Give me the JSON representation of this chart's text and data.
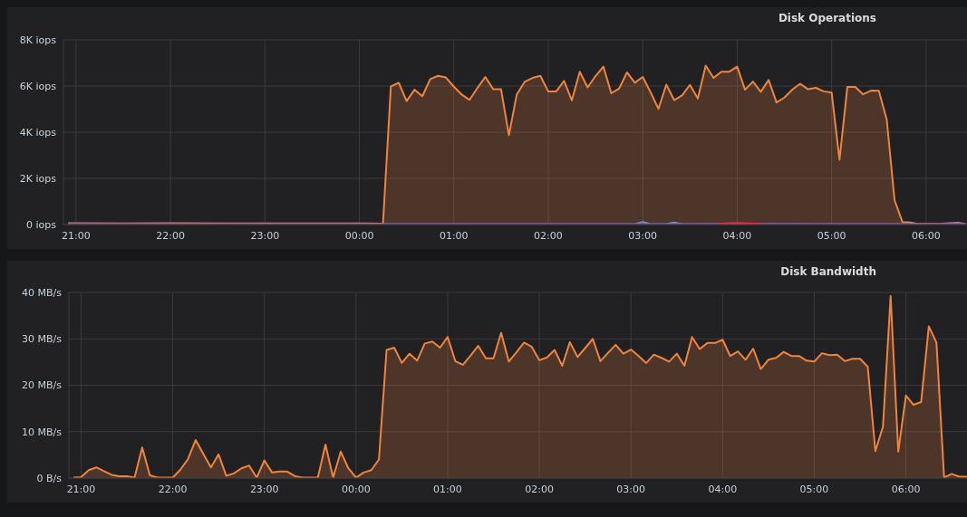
{
  "chart_data": [
    {
      "type": "area",
      "title": "Disk Operations",
      "xlim": [
        "--01-01T20:52",
        "--01-02T06:26"
      ],
      "xticks": [
        {
          "value": "--01-01T21:00",
          "label": "21:00"
        },
        {
          "value": "--01-01T22:00",
          "label": "22:00"
        },
        {
          "value": "--01-01T23:00",
          "label": "23:00"
        },
        {
          "value": "--01-02T00:00",
          "label": "00:00"
        },
        {
          "value": "--01-02T01:00",
          "label": "01:00"
        },
        {
          "value": "--01-02T02:00",
          "label": "02:00"
        },
        {
          "value": "--01-02T03:00",
          "label": "03:00"
        },
        {
          "value": "--01-02T04:00",
          "label": "04:00"
        },
        {
          "value": "--01-02T05:00",
          "label": "05:00"
        },
        {
          "value": "--01-02T06:00",
          "label": "06:00"
        }
      ],
      "ylim": [
        0,
        8000
      ],
      "yticks": [
        {
          "value": 0,
          "label": "0 iops"
        },
        {
          "value": 2000,
          "label": "2K iops"
        },
        {
          "value": 4000,
          "label": "4K iops"
        },
        {
          "value": 6000,
          "label": "6K iops"
        },
        {
          "value": 8000,
          "label": "8K iops"
        }
      ],
      "grid": true,
      "series": [
        {
          "color": "#ef843c",
          "x": [
            "--01-01T20:55",
            "--01-01T21:30",
            "--01-01T22:00",
            "--01-01T22:30",
            "--01-01T23:00",
            "--01-01T23:30",
            "--01-02T00:00",
            "--01-02T00:15",
            "--01-02T00:20",
            "--01-02T00:25",
            "--01-02T00:30",
            "--01-02T00:35",
            "--01-02T00:40",
            "--01-02T00:45",
            "--01-02T00:50",
            "--01-02T00:55",
            "--01-02T01:00",
            "--01-02T01:05",
            "--01-02T01:10",
            "--01-02T01:15",
            "--01-02T01:20",
            "--01-02T01:25",
            "--01-02T01:30",
            "--01-02T01:35",
            "--01-02T01:40",
            "--01-02T01:45",
            "--01-02T01:50",
            "--01-02T01:55",
            "--01-02T02:00",
            "--01-02T02:05",
            "--01-02T02:10",
            "--01-02T02:15",
            "--01-02T02:20",
            "--01-02T02:25",
            "--01-02T02:30",
            "--01-02T02:35",
            "--01-02T02:40",
            "--01-02T02:45",
            "--01-02T02:50",
            "--01-02T02:55",
            "--01-02T03:00",
            "--01-02T03:05",
            "--01-02T03:10",
            "--01-02T03:15",
            "--01-02T03:20",
            "--01-02T03:25",
            "--01-02T03:30",
            "--01-02T03:35",
            "--01-02T03:40",
            "--01-02T03:45",
            "--01-02T03:50",
            "--01-02T03:55",
            "--01-02T04:00",
            "--01-02T04:05",
            "--01-02T04:10",
            "--01-02T04:15",
            "--01-02T04:20",
            "--01-02T04:25",
            "--01-02T04:30",
            "--01-02T04:35",
            "--01-02T04:40",
            "--01-02T04:45",
            "--01-02T04:50",
            "--01-02T04:55",
            "--01-02T05:00",
            "--01-02T05:05",
            "--01-02T05:10",
            "--01-02T05:15",
            "--01-02T05:20",
            "--01-02T05:25",
            "--01-02T05:30",
            "--01-02T05:35",
            "--01-02T05:40",
            "--01-02T05:45",
            "--01-02T05:50",
            "--01-02T05:55",
            "--01-02T06:00",
            "--01-02T06:10",
            "--01-02T06:20",
            "--01-02T06:25"
          ],
          "values": [
            60,
            50,
            60,
            50,
            50,
            50,
            50,
            40,
            5980,
            6140,
            5350,
            5840,
            5560,
            6300,
            6440,
            6370,
            5970,
            5630,
            5400,
            5920,
            6390,
            5860,
            5860,
            3870,
            5640,
            6180,
            6350,
            6440,
            5760,
            5760,
            6220,
            5380,
            6620,
            5940,
            6430,
            6840,
            5690,
            5890,
            6590,
            6140,
            6390,
            5730,
            5010,
            6060,
            5390,
            5590,
            6050,
            5460,
            6880,
            6350,
            6620,
            6620,
            6840,
            5840,
            6190,
            5750,
            6260,
            5290,
            5500,
            5840,
            6100,
            5860,
            5920,
            5770,
            5720,
            2810,
            5960,
            5960,
            5640,
            5800,
            5790,
            4550,
            1050,
            110,
            90,
            20,
            30,
            40,
            80,
            30
          ]
        },
        {
          "color": "#5794f2",
          "x": [
            "--01-01T20:55",
            "--01-01T22:00",
            "--01-01T23:00",
            "--01-02T00:00",
            "--01-02T01:00",
            "--01-02T02:00",
            "--01-02T02:55",
            "--01-02T03:00",
            "--01-02T03:05",
            "--01-02T03:15",
            "--01-02T03:20",
            "--01-02T03:25",
            "--01-02T04:00",
            "--01-02T05:00",
            "--01-02T06:00",
            "--01-02T06:25"
          ],
          "values": [
            30,
            20,
            20,
            20,
            20,
            20,
            20,
            110,
            20,
            20,
            90,
            20,
            30,
            20,
            20,
            40
          ]
        },
        {
          "color": "#e02f44",
          "x": [
            "--01-01T20:55",
            "--01-02T00:00",
            "--01-02T03:45",
            "--01-02T03:55",
            "--01-02T04:00",
            "--01-02T04:10",
            "--01-02T04:20",
            "--01-02T06:00",
            "--01-02T06:25"
          ],
          "values": [
            20,
            10,
            10,
            60,
            70,
            40,
            10,
            10,
            20
          ]
        }
      ]
    },
    {
      "type": "area",
      "title": "Disk Bandwidth",
      "xlim": [
        "--01-01T20:52",
        "--01-02T06:40"
      ],
      "xticks": [
        {
          "value": "--01-01T21:00",
          "label": "21:00"
        },
        {
          "value": "--01-01T22:00",
          "label": "22:00"
        },
        {
          "value": "--01-01T23:00",
          "label": "23:00"
        },
        {
          "value": "--01-02T00:00",
          "label": "00:00"
        },
        {
          "value": "--01-02T01:00",
          "label": "01:00"
        },
        {
          "value": "--01-02T02:00",
          "label": "02:00"
        },
        {
          "value": "--01-02T03:00",
          "label": "03:00"
        },
        {
          "value": "--01-02T04:00",
          "label": "04:00"
        },
        {
          "value": "--01-02T05:00",
          "label": "05:00"
        },
        {
          "value": "--01-02T06:00",
          "label": "06:00"
        }
      ],
      "ylim": [
        0,
        40
      ],
      "yticks": [
        {
          "value": 0,
          "label": "0 B/s"
        },
        {
          "value": 10,
          "label": "10 MB/s"
        },
        {
          "value": 20,
          "label": "20 MB/s"
        },
        {
          "value": 30,
          "label": "30 MB/s"
        },
        {
          "value": 40,
          "label": "40 MB/s"
        }
      ],
      "grid": true,
      "series": [
        {
          "color": "#ef843c",
          "x": [
            "--01-01T20:55",
            "--01-01T21:00",
            "--01-01T21:05",
            "--01-01T21:10",
            "--01-01T21:15",
            "--01-01T21:20",
            "--01-01T21:25",
            "--01-01T21:30",
            "--01-01T21:35",
            "--01-01T21:40",
            "--01-01T21:45",
            "--01-01T21:50",
            "--01-01T21:55",
            "--01-01T22:00",
            "--01-01T22:05",
            "--01-01T22:10",
            "--01-01T22:15",
            "--01-01T22:20",
            "--01-01T22:25",
            "--01-01T22:30",
            "--01-01T22:35",
            "--01-01T22:40",
            "--01-01T22:45",
            "--01-01T22:50",
            "--01-01T22:55",
            "--01-01T23:00",
            "--01-01T23:05",
            "--01-01T23:10",
            "--01-01T23:15",
            "--01-01T23:20",
            "--01-01T23:25",
            "--01-01T23:30",
            "--01-01T23:35",
            "--01-01T23:40",
            "--01-01T23:45",
            "--01-01T23:50",
            "--01-01T23:55",
            "--01-02T00:00",
            "--01-02T00:05",
            "--01-02T00:10",
            "--01-02T00:15",
            "--01-02T00:20",
            "--01-02T00:25",
            "--01-02T00:30",
            "--01-02T00:35",
            "--01-02T00:40",
            "--01-02T00:45",
            "--01-02T00:50",
            "--01-02T00:55",
            "--01-02T01:00",
            "--01-02T01:05",
            "--01-02T01:10",
            "--01-02T01:15",
            "--01-02T01:20",
            "--01-02T01:25",
            "--01-02T01:30",
            "--01-02T01:35",
            "--01-02T01:40",
            "--01-02T01:45",
            "--01-02T01:50",
            "--01-02T01:55",
            "--01-02T02:00",
            "--01-02T02:05",
            "--01-02T02:10",
            "--01-02T02:15",
            "--01-02T02:20",
            "--01-02T02:25",
            "--01-02T02:30",
            "--01-02T02:35",
            "--01-02T02:40",
            "--01-02T02:45",
            "--01-02T02:50",
            "--01-02T02:55",
            "--01-02T03:00",
            "--01-02T03:05",
            "--01-02T03:10",
            "--01-02T03:15",
            "--01-02T03:20",
            "--01-02T03:25",
            "--01-02T03:30",
            "--01-02T03:35",
            "--01-02T03:40",
            "--01-02T03:45",
            "--01-02T03:50",
            "--01-02T03:55",
            "--01-02T04:00",
            "--01-02T04:05",
            "--01-02T04:10",
            "--01-02T04:15",
            "--01-02T04:20",
            "--01-02T04:25",
            "--01-02T04:30",
            "--01-02T04:35",
            "--01-02T04:40",
            "--01-02T04:45",
            "--01-02T04:50",
            "--01-02T04:55",
            "--01-02T05:00",
            "--01-02T05:05",
            "--01-02T05:10",
            "--01-02T05:15",
            "--01-02T05:20",
            "--01-02T05:25",
            "--01-02T05:30",
            "--01-02T05:35",
            "--01-02T05:40",
            "--01-02T05:45",
            "--01-02T05:50",
            "--01-02T05:55",
            "--01-02T06:00",
            "--01-02T06:05",
            "--01-02T06:10",
            "--01-02T06:15",
            "--01-02T06:20",
            "--01-02T06:25",
            "--01-02T06:30",
            "--01-02T06:35",
            "--01-02T06:40"
          ],
          "values": [
            0.1,
            0.2,
            1.7,
            2.3,
            1.5,
            0.7,
            0.4,
            0.4,
            0.1,
            6.6,
            0.6,
            0.1,
            0.1,
            0.1,
            1.8,
            4.1,
            8.2,
            5.2,
            2.3,
            5.1,
            0.5,
            1.0,
            2.1,
            2.7,
            0.1,
            3.8,
            1.2,
            1.4,
            1.4,
            0.4,
            0.1,
            0.1,
            0.1,
            7.2,
            0.1,
            5.7,
            2.1,
            0.1,
            1.2,
            1.7,
            4.0,
            27.6,
            28.1,
            24.8,
            26.8,
            25.3,
            29.0,
            29.4,
            28.1,
            30.4,
            25.2,
            24.4,
            26.4,
            28.5,
            25.8,
            25.8,
            31.3,
            25.1,
            27.1,
            29.2,
            28.3,
            25.4,
            26.0,
            27.6,
            24.2,
            29.3,
            26.1,
            28.0,
            30.0,
            25.2,
            27.0,
            28.7,
            26.8,
            27.7,
            26.3,
            24.8,
            26.6,
            25.9,
            25.1,
            26.8,
            24.2,
            30.4,
            27.8,
            29.1,
            29.1,
            29.8,
            26.3,
            27.3,
            25.5,
            27.9,
            23.5,
            25.5,
            25.9,
            27.2,
            26.3,
            26.3,
            25.3,
            25.1,
            26.9,
            26.5,
            26.6,
            25.2,
            25.7,
            25.7,
            24.0,
            5.8,
            11.1,
            39.2,
            5.7,
            17.8,
            15.8,
            16.4,
            32.7,
            29.2,
            0.1,
            0.9,
            0.3,
            0.3
          ]
        }
      ]
    }
  ]
}
